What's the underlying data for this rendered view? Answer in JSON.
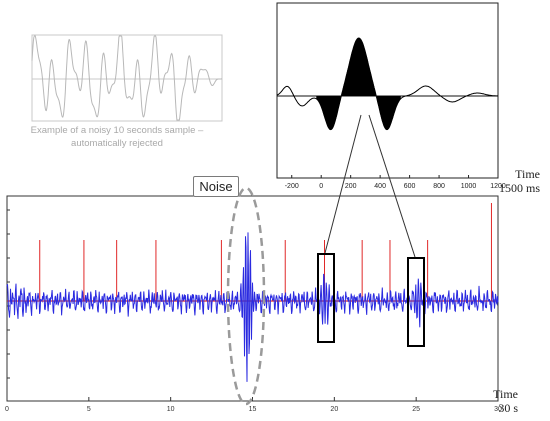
{
  "rejected_sample": {
    "caption_line1": "Example of a noisy 10 seconds sample –",
    "caption_line2": "automatically rejected",
    "trace_color": "#b8b8b8"
  },
  "noise_callout": {
    "label": "Noise",
    "ellipse_color": "#9a9a9a"
  },
  "main_trace": {
    "time_title": "Time",
    "time_unit": "30 s",
    "x_ticks": [
      "0",
      "5",
      "10",
      "15",
      "20",
      "25",
      "30"
    ],
    "x_range": [
      0,
      30
    ],
    "signal_color": "#2a2ae0",
    "baseline_color": "#e02828",
    "marker_times_s": [
      2,
      4.7,
      6.7,
      9.1,
      13.1,
      17,
      19.4,
      21.7,
      23.4,
      25.7,
      29.6
    ],
    "selected_epoch_times_s": [
      19.4,
      25.1
    ]
  },
  "averaged_response": {
    "time_title": "Time",
    "time_unit": "1500 ms",
    "x_ticks": [
      "-200",
      "0",
      "200",
      "400",
      "600",
      "800",
      "1000",
      "1200"
    ],
    "x_range": [
      -300,
      1200
    ]
  }
}
